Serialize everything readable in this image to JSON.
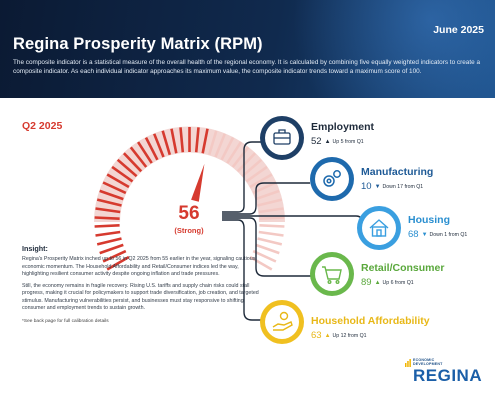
{
  "header": {
    "title": "Regina Prosperity Matrix (RPM)",
    "date": "June 2025",
    "description": "The composite indicator is a statistical measure of the overall health of the regional economy. It is calculated by combining five equally weighted indicators to create a composite indicator. As each individual indicator approaches its maximum value, the composite indicator trends toward a maximum score of 100."
  },
  "quarter": "Q2 2025",
  "gauge": {
    "score": "56",
    "label": "(Strong)",
    "value": 56,
    "max": 100,
    "color": "#d63a2f"
  },
  "insight": {
    "heading": "Insight:",
    "paragraph1": "Regina's Prosperity Matrix inched up to 56 in Q2 2025 from 55 earlier in the year, signaling cautious economic momentum. The Household Affordability and Retail/Consumer indices led the way, highlighting resilient consumer activity despite ongoing inflation and trade pressures.",
    "paragraph2": "Still, the economy remains in fragile recovery. Rising U.S. tariffs and supply chain risks could stall progress, making it crucial for policymakers to support trade diversification, job creation, and targeted stimulus. Manufacturing vulnerabilities persist, and businesses must stay responsive to shifting consumer and employment trends to sustain growth.",
    "note": "*See back page for full calibration details"
  },
  "metrics": [
    {
      "name": "Employment",
      "value": "52",
      "direction": "up",
      "change": "Up 5 from Q1",
      "color": "#1e2a3a",
      "ring": "#1e3f66",
      "icon": "briefcase-icon"
    },
    {
      "name": "Manufacturing",
      "value": "10",
      "direction": "down",
      "change": "Down 17 from Q1",
      "color": "#1e5a96",
      "ring": "#1e6aad",
      "icon": "gears-icon"
    },
    {
      "name": "Housing",
      "value": "68",
      "direction": "down",
      "change": "Down 1 from Q1",
      "color": "#2a8fd0",
      "ring": "#3a9fe0",
      "icon": "house-icon"
    },
    {
      "name": "Retail/Consumer",
      "value": "89",
      "direction": "up",
      "change": "Up 6 from Q1",
      "color": "#5aa83c",
      "ring": "#6ab84c",
      "icon": "cart-icon"
    },
    {
      "name": "Household Affordability",
      "value": "63",
      "direction": "up",
      "change": "Up 12 from Q1",
      "color": "#e8b818",
      "ring": "#f0c020",
      "icon": "hand-coin-icon"
    }
  ],
  "logo": {
    "line1": "ECONOMIC",
    "line2": "DEVELOPMENT",
    "name": "REGINA"
  }
}
